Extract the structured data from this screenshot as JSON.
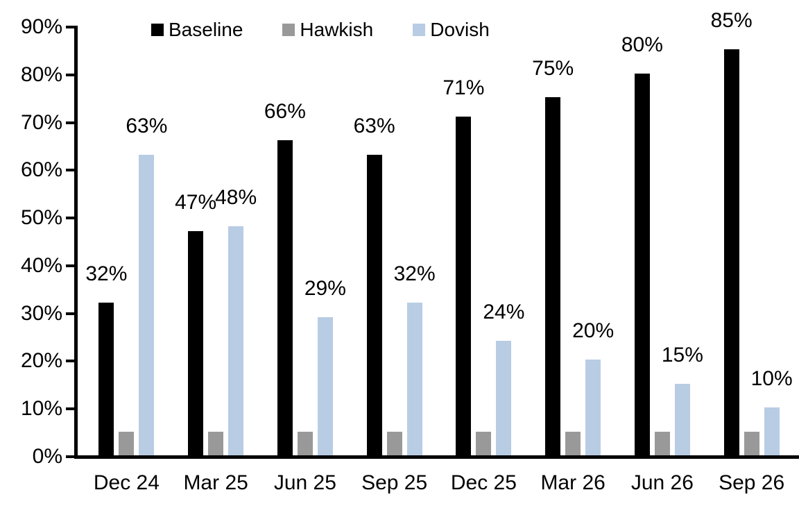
{
  "chart_data": {
    "type": "bar",
    "title": "",
    "xlabel": "",
    "ylabel": "",
    "categories": [
      "Dec 24",
      "Mar 25",
      "Jun 25",
      "Sep 25",
      "Dec 25",
      "Mar 26",
      "Jun 26",
      "Sep 26"
    ],
    "series": [
      {
        "name": "Baseline",
        "color": "#000000",
        "values": [
          32,
          47,
          66,
          63,
          71,
          75,
          80,
          85
        ],
        "data_labels": true
      },
      {
        "name": "Hawkish",
        "color": "#999999",
        "values": [
          5,
          5,
          5,
          5,
          5,
          5,
          5,
          5
        ],
        "data_labels": false
      },
      {
        "name": "Dovish",
        "color": "#B8CCE4",
        "values": [
          63,
          48,
          29,
          32,
          24,
          20,
          15,
          10
        ],
        "data_labels": true
      }
    ],
    "ylim": [
      0,
      90
    ],
    "ytick_step": 10,
    "ytick_labels": [
      "0%",
      "10%",
      "20%",
      "30%",
      "40%",
      "50%",
      "60%",
      "70%",
      "80%",
      "90%"
    ],
    "label_suffix": "%",
    "legend_position": "top",
    "grid": false
  },
  "colors": {
    "background": "#ffffff",
    "axis": "#000000",
    "text": "#000000"
  }
}
